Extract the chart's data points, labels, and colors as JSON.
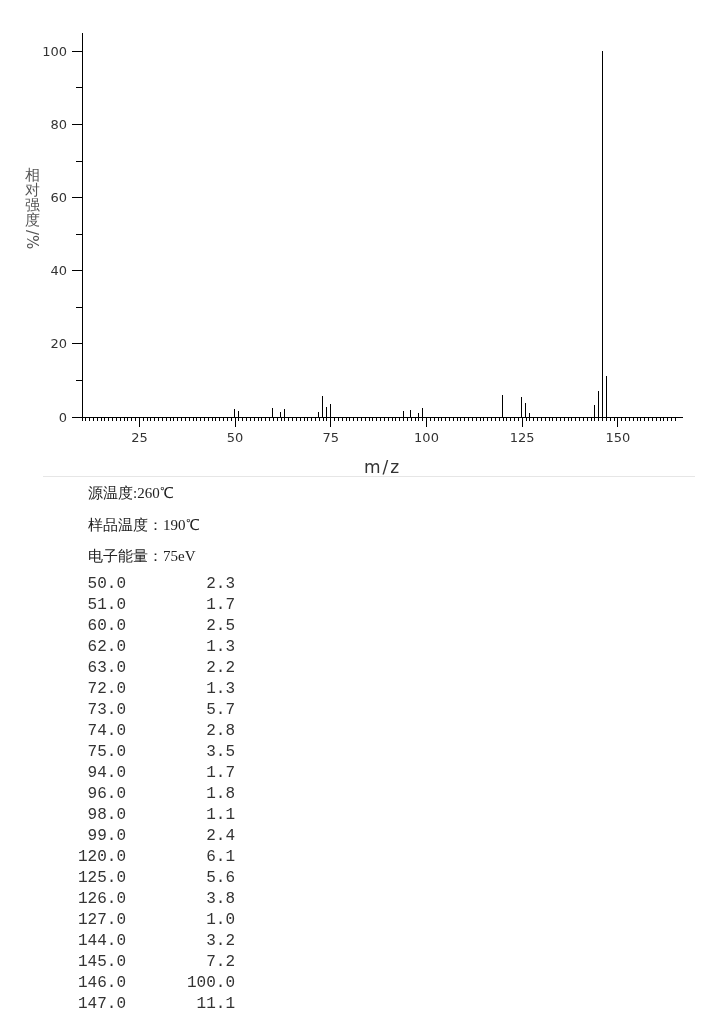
{
  "chart_data": [
    {
      "type": "bar",
      "xlabel": "m/z",
      "ylabel": "相对强度/%",
      "x": [
        50,
        51,
        60,
        62,
        63,
        72,
        73,
        74,
        75,
        94,
        96,
        98,
        99,
        120,
        125,
        126,
        127,
        144,
        145,
        146,
        147
      ],
      "values": [
        2.3,
        1.7,
        2.5,
        1.3,
        2.2,
        1.3,
        5.7,
        2.8,
        3.5,
        1.7,
        1.8,
        1.1,
        2.4,
        6.1,
        5.6,
        3.8,
        1.0,
        3.2,
        7.2,
        100.0,
        11.1
      ],
      "color": "#000000",
      "xlim": [
        10,
        167
      ],
      "xticks": [
        {
          "value": 10,
          "label": null
        },
        {
          "value": 11,
          "label": null
        },
        {
          "value": 12,
          "label": null
        },
        {
          "value": 13,
          "label": null
        },
        {
          "value": 14,
          "label": null
        },
        {
          "value": 15,
          "label": null
        },
        {
          "value": 16,
          "label": null
        },
        {
          "value": 17,
          "label": null
        },
        {
          "value": 18,
          "label": null
        },
        {
          "value": 19,
          "label": null
        },
        {
          "value": 20,
          "label": null
        },
        {
          "value": 21,
          "label": null
        },
        {
          "value": 22,
          "label": null
        },
        {
          "value": 23,
          "label": null
        },
        {
          "value": 24,
          "label": null
        },
        25,
        {
          "value": 26,
          "label": null
        },
        {
          "value": 27,
          "label": null
        },
        {
          "value": 28,
          "label": null
        },
        {
          "value": 29,
          "label": null
        },
        {
          "value": 30,
          "label": null
        },
        {
          "value": 31,
          "label": null
        },
        {
          "value": 32,
          "label": null
        },
        {
          "value": 33,
          "label": null
        },
        {
          "value": 34,
          "label": null
        },
        {
          "value": 35,
          "label": null
        },
        {
          "value": 36,
          "label": null
        },
        {
          "value": 37,
          "label": null
        },
        {
          "value": 38,
          "label": null
        },
        {
          "value": 39,
          "label": null
        },
        {
          "value": 40,
          "label": null
        },
        {
          "value": 41,
          "label": null
        },
        {
          "value": 42,
          "label": null
        },
        {
          "value": 43,
          "label": null
        },
        {
          "value": 44,
          "label": null
        },
        {
          "value": 45,
          "label": null
        },
        {
          "value": 46,
          "label": null
        },
        {
          "value": 47,
          "label": null
        },
        {
          "value": 48,
          "label": null
        },
        {
          "value": 49,
          "label": null
        },
        50,
        {
          "value": 51,
          "label": null
        },
        {
          "value": 52,
          "label": null
        },
        {
          "value": 53,
          "label": null
        },
        {
          "value": 54,
          "label": null
        },
        {
          "value": 55,
          "label": null
        },
        {
          "value": 56,
          "label": null
        },
        {
          "value": 57,
          "label": null
        },
        {
          "value": 58,
          "label": null
        },
        {
          "value": 59,
          "label": null
        },
        {
          "value": 60,
          "label": null
        },
        {
          "value": 61,
          "label": null
        },
        {
          "value": 62,
          "label": null
        },
        {
          "value": 63,
          "label": null
        },
        {
          "value": 64,
          "label": null
        },
        {
          "value": 65,
          "label": null
        },
        {
          "value": 66,
          "label": null
        },
        {
          "value": 67,
          "label": null
        },
        {
          "value": 68,
          "label": null
        },
        {
          "value": 69,
          "label": null
        },
        {
          "value": 70,
          "label": null
        },
        {
          "value": 71,
          "label": null
        },
        {
          "value": 72,
          "label": null
        },
        {
          "value": 73,
          "label": null
        },
        {
          "value": 74,
          "label": null
        },
        75,
        {
          "value": 76,
          "label": null
        },
        {
          "value": 77,
          "label": null
        },
        {
          "value": 78,
          "label": null
        },
        {
          "value": 79,
          "label": null
        },
        {
          "value": 80,
          "label": null
        },
        {
          "value": 81,
          "label": null
        },
        {
          "value": 82,
          "label": null
        },
        {
          "value": 83,
          "label": null
        },
        {
          "value": 84,
          "label": null
        },
        {
          "value": 85,
          "label": null
        },
        {
          "value": 86,
          "label": null
        },
        {
          "value": 87,
          "label": null
        },
        {
          "value": 88,
          "label": null
        },
        {
          "value": 89,
          "label": null
        },
        {
          "value": 90,
          "label": null
        },
        {
          "value": 91,
          "label": null
        },
        {
          "value": 92,
          "label": null
        },
        {
          "value": 93,
          "label": null
        },
        {
          "value": 94,
          "label": null
        },
        {
          "value": 95,
          "label": null
        },
        {
          "value": 96,
          "label": null
        },
        {
          "value": 97,
          "label": null
        },
        {
          "value": 98,
          "label": null
        },
        {
          "value": 99,
          "label": null
        },
        100,
        {
          "value": 101,
          "label": null
        },
        {
          "value": 102,
          "label": null
        },
        {
          "value": 103,
          "label": null
        },
        {
          "value": 104,
          "label": null
        },
        {
          "value": 105,
          "label": null
        },
        {
          "value": 106,
          "label": null
        },
        {
          "value": 107,
          "label": null
        },
        {
          "value": 108,
          "label": null
        },
        {
          "value": 109,
          "label": null
        },
        {
          "value": 110,
          "label": null
        },
        {
          "value": 111,
          "label": null
        },
        {
          "value": 112,
          "label": null
        },
        {
          "value": 113,
          "label": null
        },
        {
          "value": 114,
          "label": null
        },
        {
          "value": 115,
          "label": null
        },
        {
          "value": 116,
          "label": null
        },
        {
          "value": 117,
          "label": null
        },
        {
          "value": 118,
          "label": null
        },
        {
          "value": 119,
          "label": null
        },
        {
          "value": 120,
          "label": null
        },
        {
          "value": 121,
          "label": null
        },
        {
          "value": 122,
          "label": null
        },
        {
          "value": 123,
          "label": null
        },
        {
          "value": 124,
          "label": null
        },
        125,
        {
          "value": 126,
          "label": null
        },
        {
          "value": 127,
          "label": null
        },
        {
          "value": 128,
          "label": null
        },
        {
          "value": 129,
          "label": null
        },
        {
          "value": 130,
          "label": null
        },
        {
          "value": 131,
          "label": null
        },
        {
          "value": 132,
          "label": null
        },
        {
          "value": 133,
          "label": null
        },
        {
          "value": 134,
          "label": null
        },
        {
          "value": 135,
          "label": null
        },
        {
          "value": 136,
          "label": null
        },
        {
          "value": 137,
          "label": null
        },
        {
          "value": 138,
          "label": null
        },
        {
          "value": 139,
          "label": null
        },
        {
          "value": 140,
          "label": null
        },
        {
          "value": 141,
          "label": null
        },
        {
          "value": 142,
          "label": null
        },
        {
          "value": 143,
          "label": null
        },
        {
          "value": 144,
          "label": null
        },
        {
          "value": 145,
          "label": null
        },
        {
          "value": 146,
          "label": null
        },
        {
          "value": 147,
          "label": null
        },
        {
          "value": 148,
          "label": null
        },
        {
          "value": 149,
          "label": null
        },
        150,
        {
          "value": 151,
          "label": null
        },
        {
          "value": 152,
          "label": null
        },
        {
          "value": 153,
          "label": null
        },
        {
          "value": 154,
          "label": null
        },
        {
          "value": 155,
          "label": null
        },
        {
          "value": 156,
          "label": null
        },
        {
          "value": 157,
          "label": null
        },
        {
          "value": 158,
          "label": null
        },
        {
          "value": 159,
          "label": null
        },
        {
          "value": 160,
          "label": null
        },
        {
          "value": 161,
          "label": null
        },
        {
          "value": 162,
          "label": null
        },
        {
          "value": 163,
          "label": null
        },
        {
          "value": 164,
          "label": null
        },
        {
          "value": 165,
          "label": null
        }
      ],
      "ylim": [
        0,
        105
      ],
      "yticks": [
        0,
        {
          "value": 10,
          "label": null
        },
        20,
        {
          "value": 30,
          "label": null
        },
        40,
        {
          "value": 50,
          "label": null
        },
        60,
        {
          "value": 70,
          "label": null
        },
        80,
        {
          "value": 90,
          "label": null
        },
        100
      ],
      "annotations": [
        "源温度:260℃",
        "样品温度：190℃",
        "电子能量：75eV"
      ]
    },
    {
      "type": "other",
      "annotations": [
        "50.0",
        "2.3",
        "51.0",
        "1.7",
        "60.0",
        "2.5",
        "62.0",
        "1.3",
        "63.0",
        "2.2",
        "72.0",
        "1.3",
        "73.0",
        "5.7",
        "74.0",
        "2.8",
        "75.0",
        "3.5",
        "94.0",
        "1.7",
        "96.0",
        "1.8",
        "98.0",
        "1.1",
        "99.0",
        "2.4",
        "120.0",
        "6.1",
        "125.0",
        "5.6",
        "126.0",
        "3.8",
        "127.0",
        "1.0",
        "144.0",
        "3.2",
        "145.0",
        "7.2",
        "146.0",
        "100.0",
        "147.0",
        "11.1"
      ]
    }
  ]
}
